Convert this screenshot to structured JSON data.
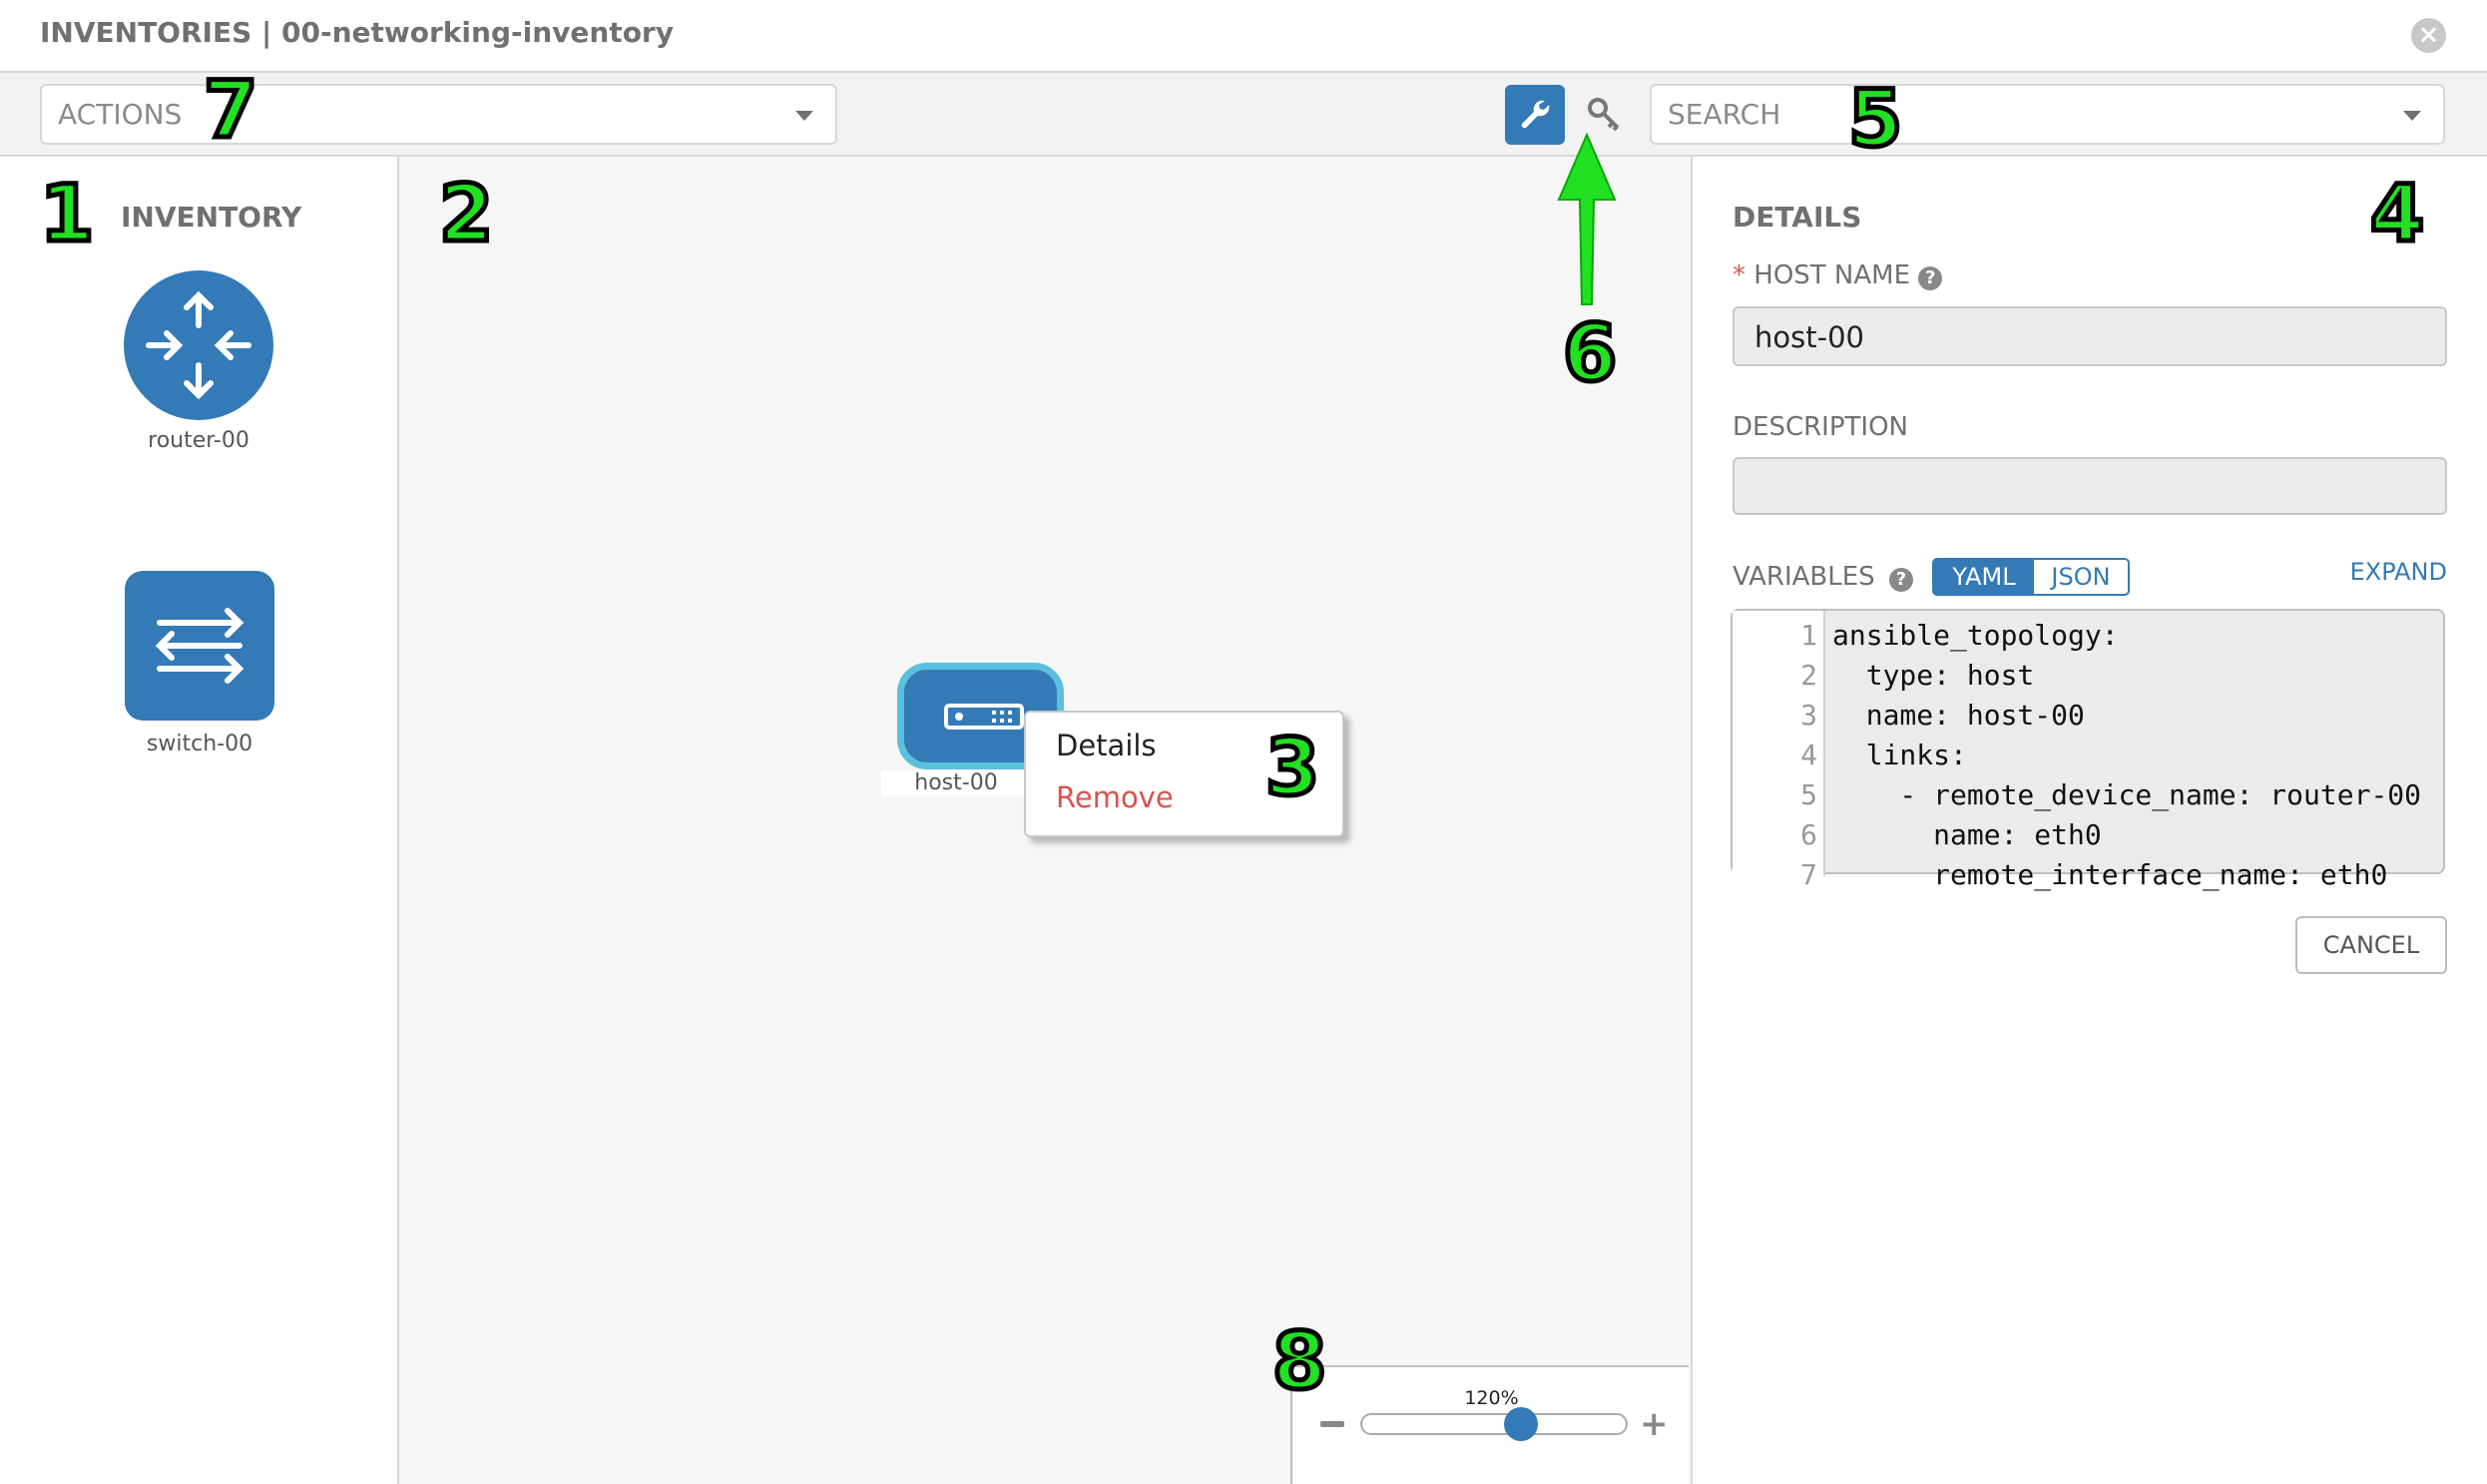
{
  "title": "INVENTORIES | 00-networking-inventory",
  "toolbar": {
    "actions_placeholder": "ACTIONS",
    "search_placeholder": "SEARCH"
  },
  "sidebar": {
    "heading": "INVENTORY",
    "items": [
      {
        "label": "router-00",
        "icon": "router-icon"
      },
      {
        "label": "switch-00",
        "icon": "switch-icon"
      }
    ]
  },
  "canvas": {
    "node": {
      "label": "host-00",
      "icon": "host-server-icon"
    },
    "context_menu": {
      "items": [
        "Details",
        "Remove"
      ]
    },
    "zoom": {
      "label": "120%",
      "value_percent": 120
    }
  },
  "details": {
    "heading": "DETAILS",
    "host_name_label": "HOST NAME",
    "host_name_value": "host-00",
    "description_label": "DESCRIPTION",
    "description_value": "",
    "variables_label": "VARIABLES",
    "toggle": [
      "YAML",
      "JSON"
    ],
    "toggle_selected": "YAML",
    "expand_label": "EXPAND",
    "code_lines": [
      "ansible_topology:",
      "  type: host",
      "  name: host-00",
      "  links:",
      "    - remote_device_name: router-00",
      "      name: eth0",
      "      remote_interface_name: eth0"
    ],
    "cancel_label": "CANCEL"
  },
  "annotations": [
    "1",
    "2",
    "3",
    "4",
    "5",
    "6",
    "7",
    "8"
  ],
  "colors": {
    "accent": "#337ab7",
    "remove": "#d9534f",
    "annotation": "#22e022"
  }
}
